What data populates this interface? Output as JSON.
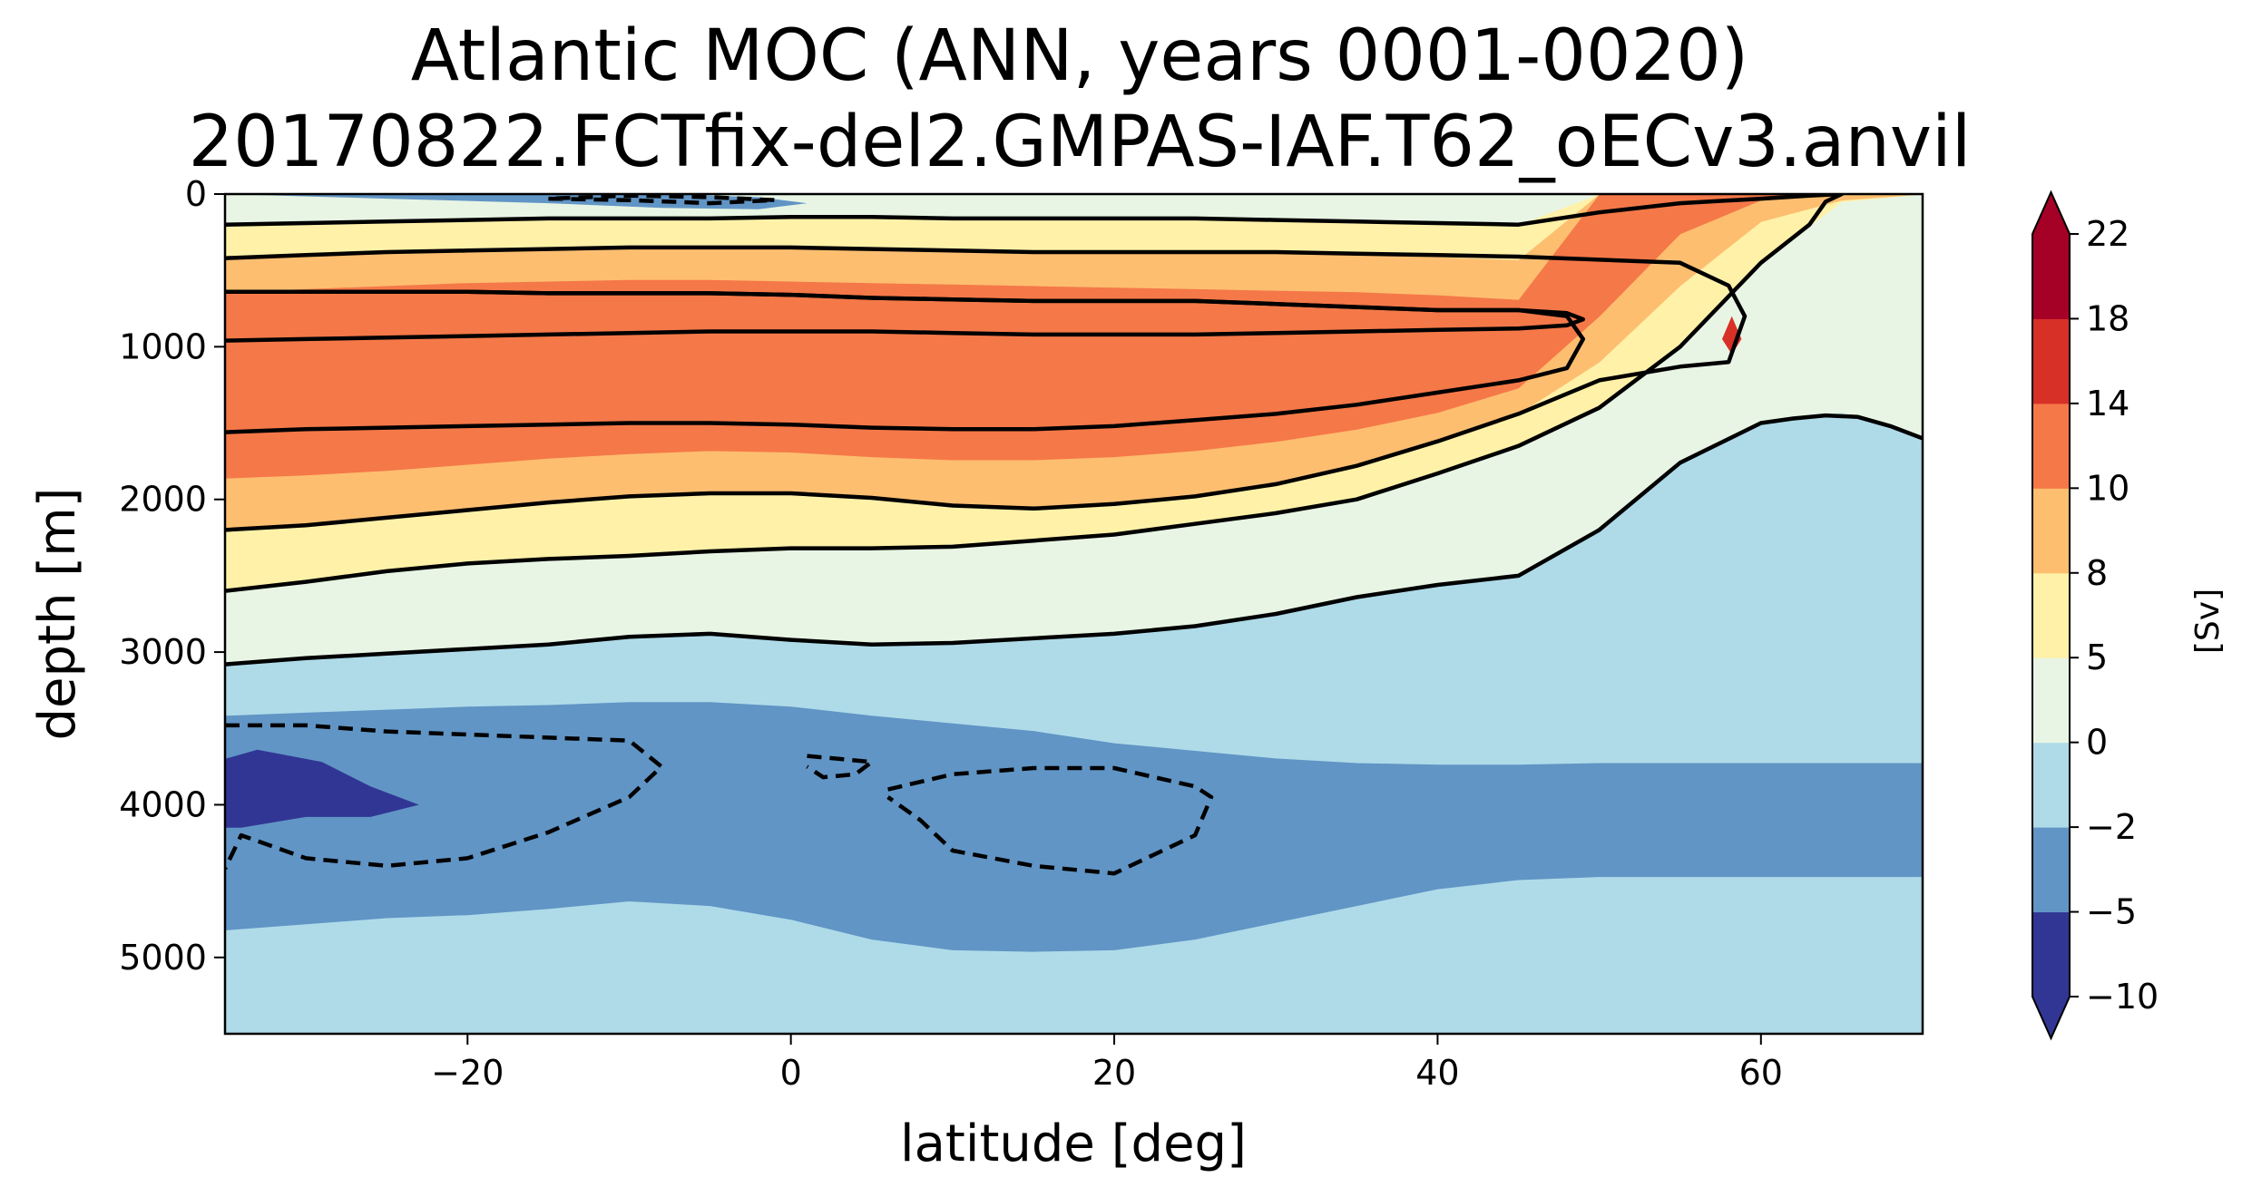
{
  "chart_data": {
    "type": "contourf",
    "title_line1": "Atlantic MOC (ANN, years 0001-0020)",
    "title_line2": "20170822.FCTfix-del2.GMPAS-IAF.T62_oECv3.anvil",
    "xlabel": "latitude [deg]",
    "ylabel": "depth [m]",
    "xlim": [
      -35,
      70
    ],
    "ylim": [
      5500,
      0
    ],
    "y_inverted": true,
    "x_ticks": [
      -20,
      0,
      20,
      40,
      60
    ],
    "x_tick_labels": [
      "−20",
      "0",
      "20",
      "40",
      "60"
    ],
    "y_ticks": [
      0,
      1000,
      2000,
      3000,
      4000,
      5000
    ],
    "y_tick_labels": [
      "0",
      "1000",
      "2000",
      "3000",
      "4000",
      "5000"
    ],
    "colorbar": {
      "label": "[Sv]",
      "extend": "both",
      "levels": [
        -10,
        -5,
        -2,
        0,
        5,
        8,
        10,
        14,
        18,
        22
      ],
      "level_labels": [
        "−10",
        "−5",
        "−2",
        "0",
        "5",
        "8",
        "10",
        "14",
        "18",
        "22"
      ],
      "colors": [
        "#313695",
        "#6195c5",
        "#afdbe9",
        "#e8f5e4",
        "#fff1a8",
        "#fdbe70",
        "#f57848",
        "#d73027",
        "#a50026"
      ],
      "under_color": "#313695",
      "over_color": "#a50026"
    },
    "bands": [
      {
        "name": "deep-negative-band",
        "color": "#afdbe9",
        "top": [
          4820,
          4780,
          4740,
          4720,
          4680,
          4630,
          4660,
          4750,
          4880,
          4950,
          4960,
          4950,
          4880,
          4770,
          4660,
          4550,
          4490,
          4470,
          4470,
          4470,
          4470,
          4470
        ],
        "bottom": [
          5500,
          5500,
          5500,
          5500,
          5500,
          5500,
          5500,
          5500,
          5500,
          5500,
          5500,
          5500,
          5500,
          5500,
          5500,
          5500,
          5500,
          5500,
          5500,
          5500,
          5500,
          5500
        ]
      },
      {
        "name": "zero-contour-band-upper",
        "color": "#afdbe9",
        "top": [
          3080,
          3040,
          3010,
          2980,
          2950,
          2900,
          2880,
          2920,
          2950,
          2940,
          2910,
          2880,
          2830,
          2750,
          2640,
          2560,
          2500,
          2200,
          1760,
          1500,
          1430,
          1600
        ],
        "bottom": [
          3420,
          3400,
          3380,
          3360,
          3350,
          3330,
          3330,
          3360,
          3420,
          3470,
          3520,
          3600,
          3650,
          3700,
          3730,
          3740,
          3740,
          3730,
          3730,
          3730,
          3730,
          3730
        ]
      },
      {
        "name": "lower-cell-inner",
        "color": "#6195c5",
        "top": [
          3420,
          3400,
          3380,
          3360,
          3350,
          3330,
          3330,
          3360,
          3420,
          3470,
          3520,
          3600,
          3650,
          3700,
          3730,
          3740,
          3740,
          3730,
          3730,
          3730,
          3730,
          3730
        ],
        "bottom": [
          4820,
          4780,
          4740,
          4720,
          4680,
          4630,
          4660,
          4750,
          4880,
          4950,
          4960,
          4950,
          4880,
          4770,
          4660,
          4550,
          4490,
          4470,
          4470,
          4470,
          4470,
          4470
        ]
      },
      {
        "name": "band-0-5",
        "color": "#e8f5e4",
        "top": [
          2600,
          2540,
          2470,
          2420,
          2390,
          2370,
          2340,
          2320,
          2320,
          2310,
          2270,
          2230,
          2160,
          2090,
          2000,
          1830,
          1650,
          1400,
          1000,
          450,
          50,
          0
        ],
        "bottom": [
          3080,
          3040,
          3010,
          2980,
          2950,
          2900,
          2880,
          2920,
          2950,
          2940,
          2910,
          2880,
          2830,
          2750,
          2640,
          2560,
          2500,
          2200,
          1760,
          1500,
          1430,
          1600
        ]
      },
      {
        "name": "band-5-8",
        "color": "#fff1a8",
        "top": [
          2200,
          2170,
          2120,
          2070,
          2020,
          1980,
          1960,
          1960,
          1990,
          2040,
          2060,
          2030,
          1980,
          1900,
          1780,
          1620,
          1440,
          1100,
          600,
          180,
          40,
          0
        ],
        "bottom": [
          2600,
          2540,
          2470,
          2420,
          2390,
          2370,
          2340,
          2320,
          2320,
          2310,
          2270,
          2230,
          2160,
          2090,
          2000,
          1830,
          1650,
          1400,
          1000,
          450,
          50,
          0
        ]
      },
      {
        "name": "band-8-10",
        "color": "#fdbe70",
        "top": [
          1860,
          1840,
          1810,
          1770,
          1730,
          1700,
          1680,
          1690,
          1720,
          1740,
          1740,
          1720,
          1680,
          1620,
          1540,
          1430,
          1270,
          800,
          260,
          40,
          0,
          0
        ],
        "bottom": [
          2200,
          2170,
          2120,
          2070,
          2020,
          1980,
          1960,
          1960,
          1990,
          2040,
          2060,
          2030,
          1980,
          1900,
          1780,
          1620,
          1440,
          1100,
          600,
          180,
          40,
          0
        ]
      },
      {
        "name": "band-10-14",
        "color": "#f57848",
        "top": [
          640,
          620,
          600,
          580,
          570,
          560,
          560,
          570,
          580,
          590,
          600,
          610,
          620,
          630,
          640,
          660,
          690,
          0,
          0,
          0,
          0,
          0
        ],
        "bottom": [
          1860,
          1840,
          1810,
          1770,
          1730,
          1700,
          1680,
          1690,
          1720,
          1740,
          1740,
          1720,
          1680,
          1620,
          1540,
          1430,
          1270,
          800,
          260,
          40,
          0,
          0
        ]
      },
      {
        "name": "band-8-10-upper",
        "color": "#fdbe70",
        "top": [
          420,
          400,
          380,
          370,
          360,
          350,
          350,
          350,
          360,
          370,
          380,
          380,
          380,
          380,
          390,
          410,
          430,
          0,
          0,
          0,
          0,
          0
        ],
        "bottom": [
          640,
          620,
          600,
          580,
          570,
          560,
          560,
          570,
          580,
          590,
          600,
          610,
          620,
          630,
          640,
          660,
          690,
          0,
          0,
          0,
          0,
          0
        ]
      },
      {
        "name": "band-5-8-upper",
        "color": "#fff1a8",
        "top": [
          200,
          190,
          180,
          170,
          160,
          160,
          160,
          150,
          150,
          160,
          160,
          160,
          160,
          170,
          180,
          190,
          200,
          0,
          0,
          0,
          0,
          0
        ],
        "bottom": [
          420,
          400,
          380,
          370,
          360,
          350,
          350,
          350,
          360,
          370,
          380,
          380,
          380,
          380,
          390,
          410,
          430,
          0,
          0,
          0,
          0,
          0
        ]
      },
      {
        "name": "band-0-5-upper",
        "color": "#e8f5e4",
        "top": [
          0,
          0,
          0,
          0,
          0,
          0,
          0,
          0,
          0,
          0,
          0,
          0,
          0,
          0,
          0,
          0,
          0,
          0,
          0,
          0,
          0,
          0
        ],
        "bottom": [
          200,
          190,
          180,
          170,
          160,
          160,
          160,
          150,
          150,
          160,
          160,
          160,
          160,
          170,
          180,
          190,
          200,
          0,
          0,
          0,
          0,
          0
        ]
      }
    ],
    "band_x": [
      -35,
      -30,
      -25,
      -20,
      -15,
      -10,
      -5,
      0,
      5,
      10,
      15,
      20,
      25,
      30,
      35,
      40,
      45,
      50,
      55,
      60,
      65,
      70
    ],
    "patches": [
      {
        "name": "surface-negative-cell",
        "color": "#6195c5",
        "x": [
          -35,
          -25,
          -15,
          -8,
          -2,
          1,
          -2,
          -8,
          -15,
          -25,
          -35
        ],
        "y": [
          0,
          30,
          60,
          90,
          100,
          60,
          20,
          0,
          0,
          0,
          0
        ]
      },
      {
        "name": "deep-strong-negative-patch",
        "color": "#313695",
        "x": [
          -35,
          -33,
          -30,
          -29,
          -26,
          -23,
          -26,
          -30,
          -34,
          -35
        ],
        "y": [
          3700,
          3640,
          3700,
          3720,
          3880,
          4000,
          4080,
          4080,
          4150,
          4150
        ]
      },
      {
        "name": "band-14-18-spot",
        "color": "#d73027",
        "x": [
          58.2,
          58.8,
          58.2,
          57.6
        ],
        "y": [
          800,
          950,
          1050,
          950
        ]
      }
    ],
    "contours": [
      {
        "name": "contour-line-0",
        "dashed": false,
        "x": [
          -35,
          -30,
          -25,
          -20,
          -15,
          -10,
          -5,
          0,
          5,
          10,
          15,
          20,
          25,
          30,
          35,
          40,
          45,
          50,
          55,
          60,
          62,
          64,
          66,
          68,
          70
        ],
        "y": [
          3080,
          3040,
          3010,
          2980,
          2950,
          2900,
          2880,
          2920,
          2950,
          2940,
          2910,
          2880,
          2830,
          2750,
          2640,
          2560,
          2500,
          2200,
          1760,
          1500,
          1470,
          1450,
          1460,
          1520,
          1600
        ]
      },
      {
        "name": "contour-line-5-lower",
        "dashed": false,
        "x": [
          -35,
          -30,
          -25,
          -20,
          -15,
          -10,
          -5,
          0,
          5,
          10,
          15,
          20,
          25,
          30,
          35,
          40,
          45,
          50,
          55,
          60,
          63,
          64,
          65,
          64
        ],
        "y": [
          2600,
          2540,
          2470,
          2420,
          2390,
          2370,
          2340,
          2320,
          2320,
          2310,
          2270,
          2230,
          2160,
          2090,
          2000,
          1830,
          1650,
          1400,
          1000,
          450,
          200,
          50,
          0,
          0
        ]
      },
      {
        "name": "contour-line-5-upper",
        "dashed": false,
        "x": [
          -35,
          -25,
          -15,
          -10,
          -5,
          0,
          5,
          10,
          15,
          20,
          25,
          30,
          35,
          40,
          45,
          50,
          55,
          60,
          63,
          65
        ],
        "y": [
          200,
          180,
          160,
          160,
          160,
          150,
          150,
          160,
          160,
          160,
          160,
          170,
          180,
          190,
          200,
          120,
          60,
          30,
          10,
          0
        ]
      },
      {
        "name": "contour-line-8",
        "dashed": false,
        "x": [
          -35,
          -30,
          -25,
          -20,
          -15,
          -10,
          -5,
          0,
          5,
          10,
          15,
          20,
          25,
          30,
          35,
          40,
          45,
          50,
          55,
          58,
          59,
          58,
          55,
          50,
          45,
          40,
          35,
          30,
          25,
          20,
          15,
          10,
          5,
          0,
          -5,
          -10,
          -15,
          -20,
          -25,
          -30,
          -35
        ],
        "y": [
          2200,
          2170,
          2120,
          2070,
          2020,
          1980,
          1960,
          1960,
          1990,
          2040,
          2060,
          2030,
          1980,
          1900,
          1780,
          1620,
          1440,
          1220,
          1130,
          1100,
          800,
          600,
          450,
          430,
          410,
          400,
          390,
          380,
          380,
          380,
          380,
          370,
          360,
          350,
          350,
          350,
          360,
          370,
          380,
          400,
          420
        ]
      },
      {
        "name": "contour-line-10-outer",
        "dashed": false,
        "x": [
          -35,
          -30,
          -25,
          -20,
          -15,
          -10,
          -5,
          0,
          5,
          10,
          15,
          20,
          25,
          30,
          35,
          40,
          45,
          48,
          49,
          48,
          45,
          40,
          35,
          30,
          25,
          20,
          15,
          10,
          5,
          0,
          -5,
          -10,
          -15,
          -20,
          -25,
          -30,
          -35
        ],
        "y": [
          1560,
          1540,
          1530,
          1520,
          1510,
          1500,
          1500,
          1510,
          1530,
          1540,
          1540,
          1520,
          1480,
          1440,
          1380,
          1300,
          1220,
          1140,
          950,
          800,
          760,
          760,
          740,
          720,
          700,
          700,
          700,
          690,
          680,
          660,
          650,
          650,
          650,
          640,
          640,
          640,
          640
        ]
      },
      {
        "name": "contour-line-10-inner",
        "dashed": false,
        "x": [
          -35,
          -30,
          -25,
          -20,
          -15,
          -10,
          -5,
          0,
          5,
          10,
          15,
          20,
          25,
          30,
          35,
          40,
          45,
          48,
          49,
          48,
          45,
          40,
          35,
          30,
          25,
          20,
          15,
          10,
          5,
          0,
          -5,
          -10,
          -15,
          -20,
          -25,
          -30,
          -35
        ],
        "y": [
          960,
          950,
          940,
          930,
          920,
          910,
          900,
          900,
          900,
          910,
          920,
          920,
          920,
          910,
          900,
          890,
          880,
          860,
          820,
          780,
          760,
          760,
          740,
          720,
          700,
          700,
          700,
          690,
          680,
          660,
          650,
          650,
          650,
          640,
          640,
          640,
          640
        ]
      },
      {
        "name": "contour-line-neg2-west",
        "dashed": true,
        "x": [
          -35,
          -30,
          -25,
          -20,
          -15,
          -10,
          -8,
          -10,
          -15,
          -20,
          -25,
          -30,
          -34,
          -35
        ],
        "y": [
          3480,
          3480,
          3520,
          3540,
          3560,
          3580,
          3750,
          3950,
          4180,
          4350,
          4400,
          4350,
          4200,
          4420
        ]
      },
      {
        "name": "contour-line-neg2-east",
        "dashed": true,
        "x": [
          6,
          10,
          15,
          20,
          25,
          26,
          25,
          20,
          15,
          10,
          8,
          6
        ],
        "y": [
          3900,
          3800,
          3760,
          3760,
          3880,
          3950,
          4200,
          4450,
          4400,
          4300,
          4100,
          3950
        ]
      },
      {
        "name": "contour-line-neg2-small",
        "dashed": true,
        "x": [
          1,
          3,
          5,
          4,
          2,
          1
        ],
        "y": [
          3680,
          3700,
          3720,
          3800,
          3820,
          3750
        ]
      },
      {
        "name": "contour-line-neg-surface",
        "dashed": true,
        "x": [
          -15,
          -10,
          -5,
          -1,
          -5,
          -10,
          -15
        ],
        "y": [
          30,
          40,
          60,
          40,
          20,
          10,
          30
        ]
      }
    ]
  }
}
